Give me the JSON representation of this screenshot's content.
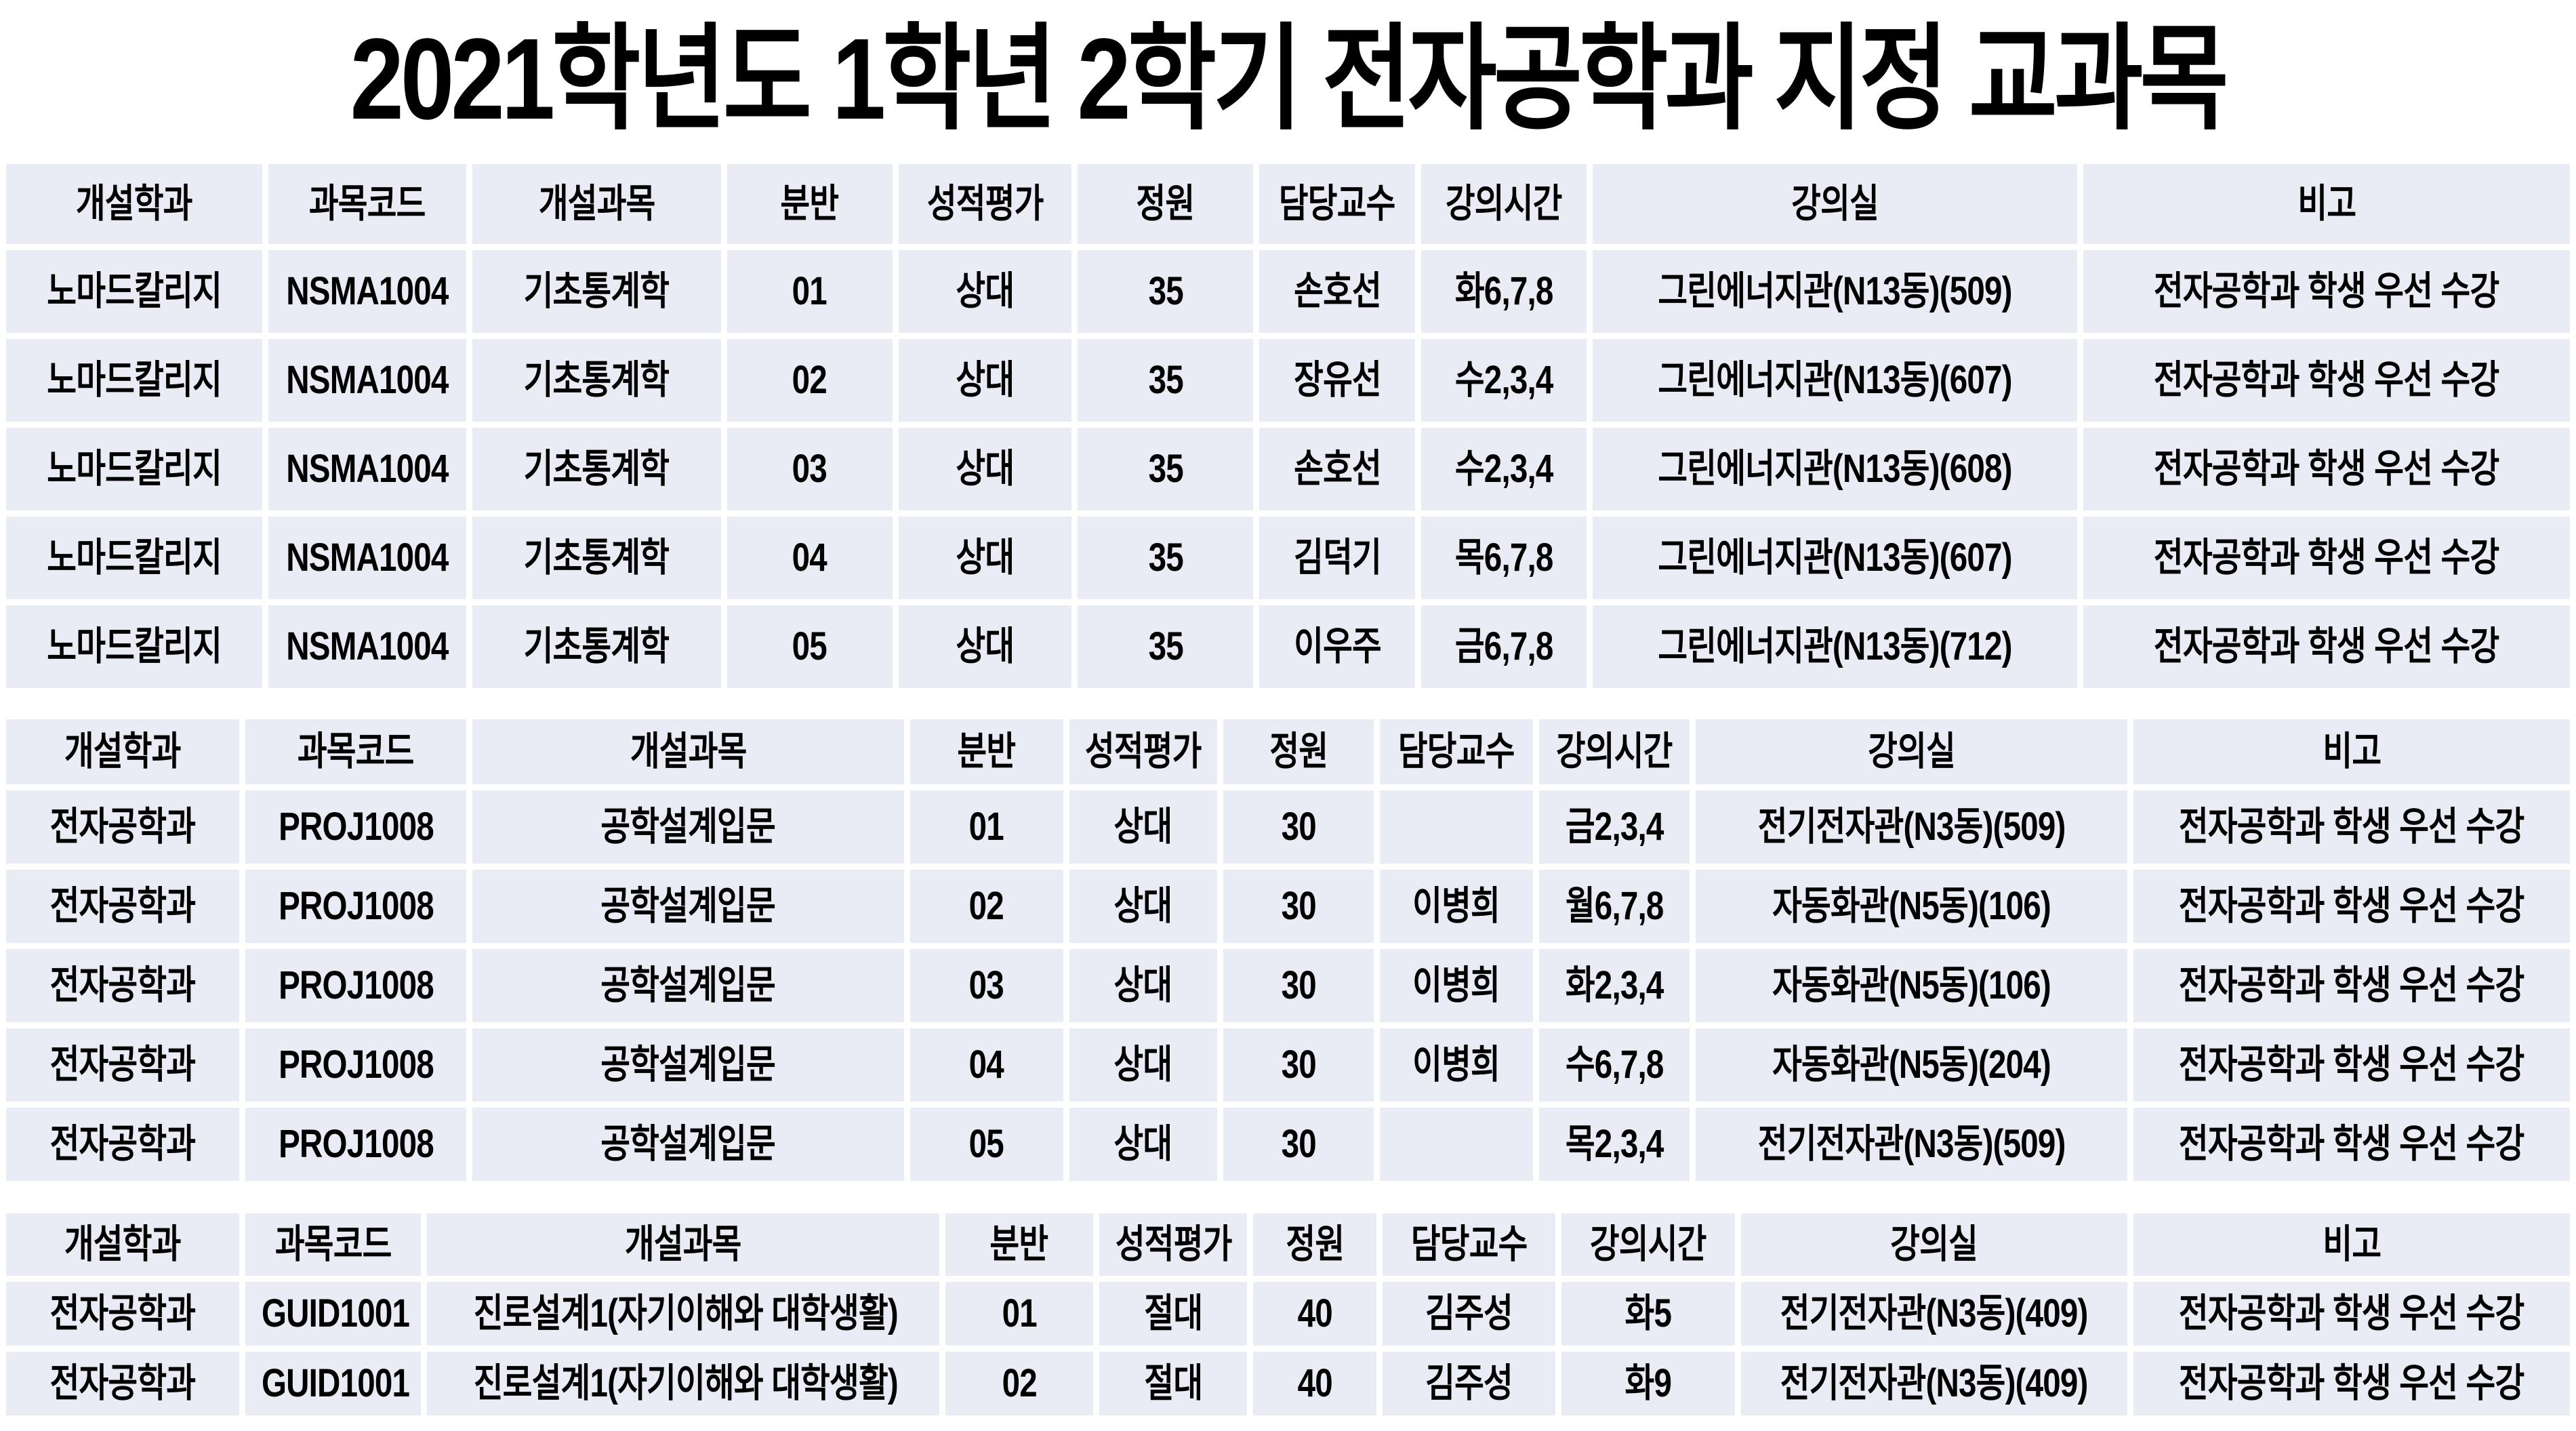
{
  "page_title": "2021학년도 1학년 2학기 전자공학과 지정 교과목",
  "colors": {
    "cell_bg": "#E9ECF5",
    "page_bg": "#FFFFFF",
    "text": "#000000"
  },
  "tables": [
    {
      "name": "basic-statistics-sections",
      "headers": [
        "개설학과",
        "과목코드",
        "개설과목",
        "분반",
        "성적평가",
        "정원",
        "담당교수",
        "강의시간",
        "강의실",
        "비고"
      ],
      "col_widths": [
        "10.2%",
        "7.9%",
        "9.9%",
        "6.6%",
        "6.9%",
        "7.0%",
        "6.2%",
        "6.6%",
        "19.3%",
        "19.4%"
      ],
      "rows": [
        [
          "노마드칼리지",
          "NSMA1004",
          "기초통계학",
          "01",
          "상대",
          "35",
          "손호선",
          "화6,7,8",
          "그린에너지관(N13동)(509)",
          "전자공학과 학생 우선 수강"
        ],
        [
          "노마드칼리지",
          "NSMA1004",
          "기초통계학",
          "02",
          "상대",
          "35",
          "장유선",
          "수2,3,4",
          "그린에너지관(N13동)(607)",
          "전자공학과 학생 우선 수강"
        ],
        [
          "노마드칼리지",
          "NSMA1004",
          "기초통계학",
          "03",
          "상대",
          "35",
          "손호선",
          "수2,3,4",
          "그린에너지관(N13동)(608)",
          "전자공학과 학생 우선 수강"
        ],
        [
          "노마드칼리지",
          "NSMA1004",
          "기초통계학",
          "04",
          "상대",
          "35",
          "김덕기",
          "목6,7,8",
          "그린에너지관(N13동)(607)",
          "전자공학과 학생 우선 수강"
        ],
        [
          "노마드칼리지",
          "NSMA1004",
          "기초통계학",
          "05",
          "상대",
          "35",
          "이우주",
          "금6,7,8",
          "그린에너지관(N13동)(712)",
          "전자공학과 학생 우선 수강"
        ]
      ]
    },
    {
      "name": "intro-engineering-design-sections",
      "headers": [
        "개설학과",
        "과목코드",
        "개설과목",
        "분반",
        "성적평가",
        "정원",
        "담당교수",
        "강의시간",
        "강의실",
        "비고"
      ],
      "col_widths": [
        "9.3%",
        "8.8%",
        "17.2%",
        "6.1%",
        "5.9%",
        "6.0%",
        "6.1%",
        "6.0%",
        "17.2%",
        "17.4%"
      ],
      "rows": [
        [
          "전자공학과",
          "PROJ1008",
          "공학설계입문",
          "01",
          "상대",
          "30",
          "",
          "금2,3,4",
          "전기전자관(N3동)(509)",
          "전자공학과 학생 우선 수강"
        ],
        [
          "전자공학과",
          "PROJ1008",
          "공학설계입문",
          "02",
          "상대",
          "30",
          "이병희",
          "월6,7,8",
          "자동화관(N5동)(106)",
          "전자공학과 학생 우선 수강"
        ],
        [
          "전자공학과",
          "PROJ1008",
          "공학설계입문",
          "03",
          "상대",
          "30",
          "이병희",
          "화2,3,4",
          "자동화관(N5동)(106)",
          "전자공학과 학생 우선 수강"
        ],
        [
          "전자공학과",
          "PROJ1008",
          "공학설계입문",
          "04",
          "상대",
          "30",
          "이병희",
          "수6,7,8",
          "자동화관(N5동)(204)",
          "전자공학과 학생 우선 수강"
        ],
        [
          "전자공학과",
          "PROJ1008",
          "공학설계입문",
          "05",
          "상대",
          "30",
          "",
          "목2,3,4",
          "전기전자관(N3동)(509)",
          "전자공학과 학생 우선 수강"
        ]
      ]
    },
    {
      "name": "career-design-sections",
      "headers": [
        "개설학과",
        "과목코드",
        "개설과목",
        "분반",
        "성적평가",
        "정원",
        "담당교수",
        "강의시간",
        "강의실",
        "비고"
      ],
      "col_widths": [
        "9.3%",
        "7.0%",
        "20.4%",
        "5.9%",
        "5.9%",
        "4.9%",
        "6.9%",
        "6.9%",
        "15.4%",
        "17.4%"
      ],
      "rows": [
        [
          "전자공학과",
          "GUID1001",
          "진로설계1(자기이해와 대학생활)",
          "01",
          "절대",
          "40",
          "김주성",
          "화5",
          "전기전자관(N3동)(409)",
          "전자공학과 학생 우선 수강"
        ],
        [
          "전자공학과",
          "GUID1001",
          "진로설계1(자기이해와 대학생활)",
          "02",
          "절대",
          "40",
          "김주성",
          "화9",
          "전기전자관(N3동)(409)",
          "전자공학과 학생 우선 수강"
        ]
      ]
    }
  ]
}
